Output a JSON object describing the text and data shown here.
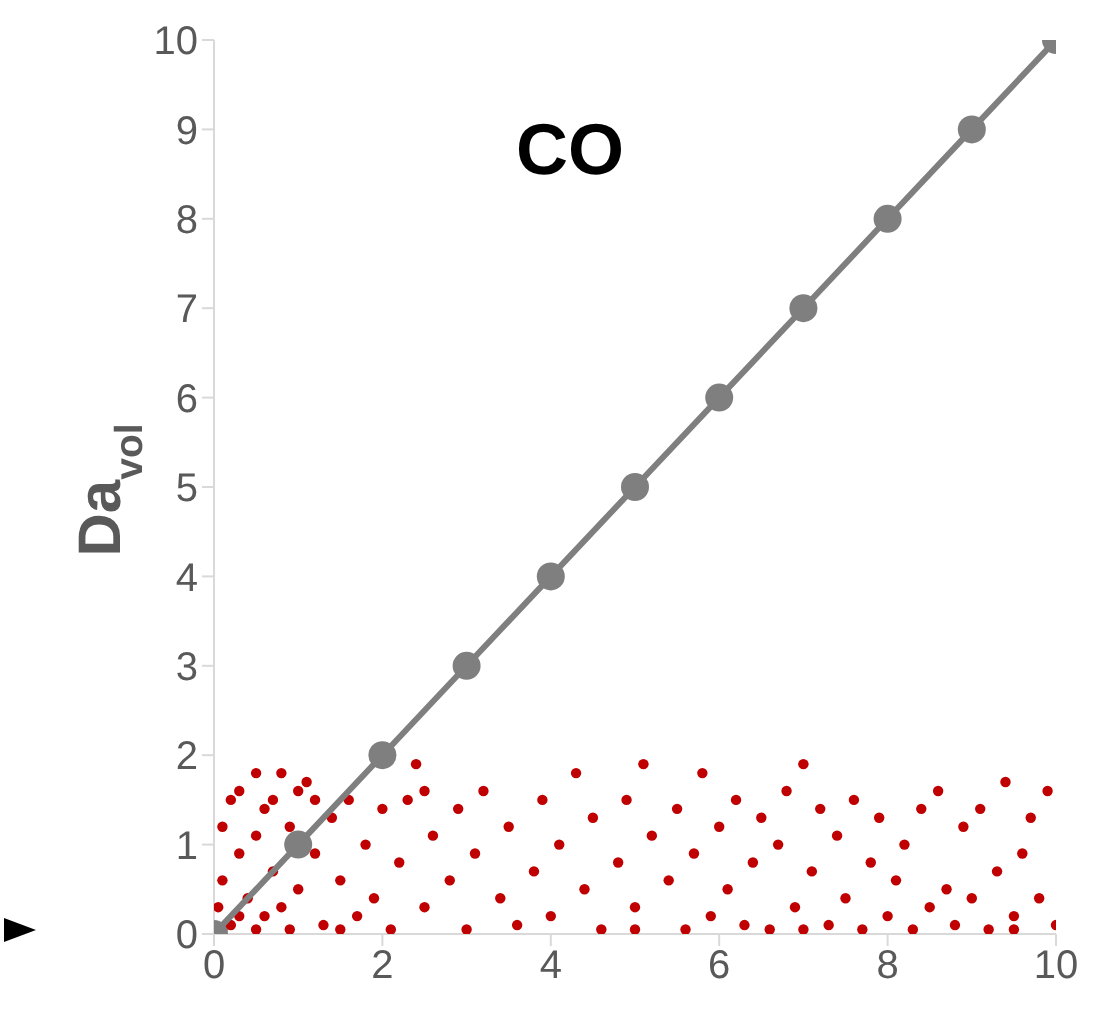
{
  "chart_data": {
    "type": "scatter",
    "title": "CO",
    "ylabel": "Da$_{vol}$",
    "xlim": [
      0,
      10
    ],
    "ylim": [
      0,
      10
    ],
    "xticks": [
      0,
      2,
      4,
      6,
      8,
      10
    ],
    "yticks": [
      0,
      1,
      2,
      3,
      4,
      5,
      6,
      7,
      8,
      9,
      10
    ],
    "grid": false,
    "marker": "circle",
    "series": [
      {
        "type": "scatter",
        "color": "#c00000",
        "x": [
          0.05,
          0.1,
          0.1,
          0.2,
          0.2,
          0.3,
          0.3,
          0.4,
          0.5,
          0.5,
          0.6,
          0.6,
          0.7,
          0.8,
          0.8,
          0.9,
          1.0,
          1.0,
          1.1,
          1.2,
          1.3,
          1.4,
          1.5,
          1.6,
          1.7,
          1.8,
          1.9,
          2.0,
          2.1,
          2.2,
          2.3,
          2.4,
          2.5,
          2.6,
          2.8,
          2.9,
          3.0,
          3.1,
          3.2,
          3.4,
          3.5,
          3.6,
          3.8,
          3.9,
          4.0,
          4.1,
          4.3,
          4.4,
          4.5,
          4.6,
          4.8,
          4.9,
          5.0,
          5.1,
          5.2,
          5.4,
          5.5,
          5.6,
          5.7,
          5.8,
          5.9,
          6.0,
          6.1,
          6.2,
          6.3,
          6.4,
          6.5,
          6.6,
          6.7,
          6.8,
          6.9,
          7.0,
          7.1,
          7.2,
          7.3,
          7.4,
          7.5,
          7.6,
          7.7,
          7.8,
          7.9,
          8.0,
          8.1,
          8.2,
          8.3,
          8.4,
          8.5,
          8.6,
          8.7,
          8.8,
          8.9,
          9.0,
          9.1,
          9.2,
          9.3,
          9.4,
          9.5,
          9.6,
          9.7,
          9.8,
          9.9,
          10.0,
          0.1,
          0.3,
          0.5,
          0.7,
          0.9,
          1.2,
          1.5,
          2.5,
          5.0,
          7.0,
          9.5
        ],
        "values": [
          0.3,
          1.2,
          0.6,
          1.5,
          0.1,
          0.9,
          1.6,
          0.4,
          1.1,
          1.8,
          0.2,
          1.4,
          0.7,
          1.8,
          0.3,
          1.2,
          0.5,
          1.6,
          1.7,
          0.9,
          0.1,
          1.3,
          0.6,
          1.5,
          0.2,
          1.0,
          0.4,
          1.4,
          0.05,
          0.8,
          1.5,
          1.9,
          0.3,
          1.1,
          0.6,
          1.4,
          0.05,
          0.9,
          1.6,
          0.4,
          1.2,
          0.1,
          0.7,
          1.5,
          0.2,
          1.0,
          1.8,
          0.5,
          1.3,
          0.05,
          0.8,
          1.5,
          0.3,
          1.9,
          1.1,
          0.6,
          1.4,
          0.05,
          0.9,
          1.8,
          0.2,
          1.2,
          0.5,
          1.5,
          0.1,
          0.8,
          1.3,
          0.05,
          1.0,
          1.6,
          0.3,
          1.9,
          0.7,
          1.4,
          0.1,
          1.1,
          0.4,
          1.5,
          0.05,
          0.8,
          1.3,
          0.2,
          0.6,
          1.0,
          0.05,
          1.4,
          0.3,
          1.6,
          0.5,
          0.1,
          1.2,
          0.4,
          1.4,
          0.05,
          0.7,
          1.7,
          0.2,
          0.9,
          1.3,
          0.4,
          1.6,
          0.1,
          0.05,
          0.2,
          0.05,
          1.5,
          0.05,
          1.5,
          0.05,
          1.6,
          0.05,
          0.05,
          0.05
        ]
      },
      {
        "type": "line",
        "color": "#7f7f7f",
        "x": [
          0,
          1,
          2,
          3,
          4,
          5,
          6,
          7,
          8,
          9,
          10
        ],
        "values": [
          0,
          1,
          2,
          3,
          4,
          5,
          6,
          7,
          8,
          9,
          10
        ]
      }
    ]
  }
}
